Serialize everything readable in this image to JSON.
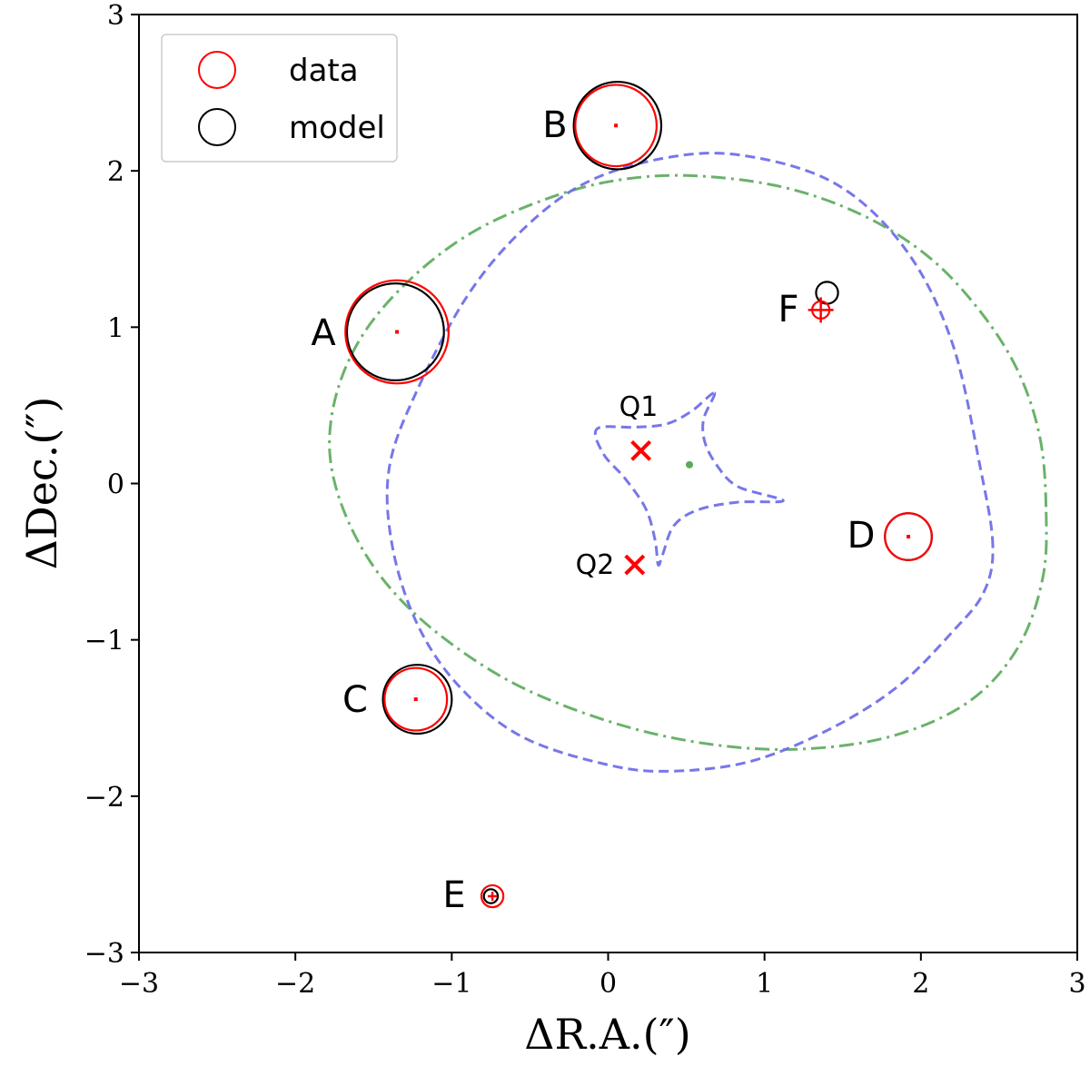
{
  "chart_data": {
    "type": "scatter",
    "title": "",
    "xlabel": "ΔR.A.(″)",
    "ylabel": "ΔDec.(″)",
    "xlim": [
      -3,
      3
    ],
    "ylim": [
      -3,
      3
    ],
    "xticks": [
      -3,
      -2,
      -1,
      0,
      1,
      2,
      3
    ],
    "yticks": [
      -3,
      -2,
      -1,
      0,
      1,
      2,
      3
    ],
    "xtick_labels": [
      "−3",
      "−2",
      "−1",
      "0",
      "1",
      "2",
      "3"
    ],
    "ytick_labels": [
      "−3",
      "−2",
      "−1",
      "0",
      "1",
      "2",
      "3"
    ],
    "grid": false,
    "legend": {
      "position": "top-left",
      "entries": [
        {
          "label": "data",
          "color": "#ff0000"
        },
        {
          "label": "model",
          "color": "#000000"
        }
      ]
    },
    "images": [
      {
        "name": "A",
        "data": {
          "x": -1.35,
          "y": 0.97,
          "r": 0.33
        },
        "model": {
          "x": -1.36,
          "y": 0.97,
          "r": 0.31
        }
      },
      {
        "name": "B",
        "data": {
          "x": 0.05,
          "y": 2.29,
          "r": 0.26
        },
        "model": {
          "x": 0.06,
          "y": 2.29,
          "r": 0.28
        }
      },
      {
        "name": "C",
        "data": {
          "x": -1.23,
          "y": -1.38,
          "r": 0.2
        },
        "model": {
          "x": -1.22,
          "y": -1.38,
          "r": 0.22
        }
      },
      {
        "name": "D",
        "data": {
          "x": 1.92,
          "y": -0.34,
          "r": 0.15
        },
        "model": {
          "x": 1.92,
          "y": -0.34,
          "r": 0.15
        }
      },
      {
        "name": "E",
        "data": {
          "x": -0.74,
          "y": -2.64,
          "r": 0.07
        },
        "model": {
          "x": -0.75,
          "y": -2.64,
          "r": 0.045
        }
      },
      {
        "name": "F",
        "data": {
          "x": 1.36,
          "y": 1.11,
          "r": 0.055
        },
        "model": {
          "x": 1.4,
          "y": 1.22,
          "r": 0.07
        }
      }
    ],
    "perturbers": [
      {
        "name": "Q1",
        "x": 0.21,
        "y": 0.21
      },
      {
        "name": "Q2",
        "x": 0.17,
        "y": -0.52
      }
    ],
    "source_center": {
      "x": 0.52,
      "y": 0.12
    },
    "critical_curve": {
      "style": "dash-dot",
      "color": "#5aaa5a",
      "points": [
        [
          2.8,
          -0.15
        ],
        [
          2.76,
          0.3
        ],
        [
          2.62,
          0.72
        ],
        [
          2.38,
          1.1
        ],
        [
          2.05,
          1.45
        ],
        [
          1.62,
          1.72
        ],
        [
          1.1,
          1.9
        ],
        [
          0.5,
          1.97
        ],
        [
          0.0,
          1.93
        ],
        [
          -0.45,
          1.8
        ],
        [
          -0.88,
          1.6
        ],
        [
          -1.25,
          1.32
        ],
        [
          -1.55,
          0.98
        ],
        [
          -1.73,
          0.6
        ],
        [
          -1.78,
          0.2
        ],
        [
          -1.68,
          -0.2
        ],
        [
          -1.45,
          -0.6
        ],
        [
          -1.1,
          -0.95
        ],
        [
          -0.6,
          -1.28
        ],
        [
          0.0,
          -1.52
        ],
        [
          0.6,
          -1.66
        ],
        [
          1.2,
          -1.7
        ],
        [
          1.8,
          -1.62
        ],
        [
          2.3,
          -1.4
        ],
        [
          2.62,
          -1.05
        ],
        [
          2.78,
          -0.6
        ]
      ]
    },
    "tangential_caustic": {
      "style": "dashed",
      "color": "#7070e8",
      "points": [
        [
          2.46,
          -0.4
        ],
        [
          2.38,
          0.1
        ],
        [
          2.2,
          0.9
        ],
        [
          1.9,
          1.5
        ],
        [
          1.45,
          1.92
        ],
        [
          0.85,
          2.1
        ],
        [
          0.35,
          2.08
        ],
        [
          -0.15,
          1.92
        ],
        [
          -0.55,
          1.62
        ],
        [
          -0.9,
          1.2
        ],
        [
          -1.22,
          0.6
        ],
        [
          -1.4,
          0.1
        ],
        [
          -1.38,
          -0.4
        ],
        [
          -1.22,
          -0.9
        ],
        [
          -0.95,
          -1.3
        ],
        [
          -0.55,
          -1.62
        ],
        [
          0.0,
          -1.8
        ],
        [
          0.4,
          -1.84
        ],
        [
          0.9,
          -1.78
        ],
        [
          1.4,
          -1.58
        ],
        [
          1.85,
          -1.3
        ],
        [
          2.2,
          -0.95
        ],
        [
          2.4,
          -0.7
        ]
      ]
    },
    "radial_caustic": {
      "style": "dashed",
      "color": "#7070e8",
      "points": [
        [
          0.68,
          0.58
        ],
        [
          0.61,
          0.41
        ],
        [
          0.62,
          0.26
        ],
        [
          0.7,
          0.11
        ],
        [
          0.83,
          -0.02
        ],
        [
          1.12,
          -0.11
        ],
        [
          0.82,
          -0.12
        ],
        [
          0.57,
          -0.17
        ],
        [
          0.42,
          -0.27
        ],
        [
          0.35,
          -0.45
        ],
        [
          0.32,
          -0.52
        ],
        [
          0.3,
          -0.36
        ],
        [
          0.24,
          -0.16
        ],
        [
          0.11,
          0.03
        ],
        [
          -0.03,
          0.19
        ],
        [
          -0.07,
          0.35
        ],
        [
          0.17,
          0.36
        ],
        [
          0.37,
          0.38
        ],
        [
          0.53,
          0.46
        ]
      ]
    },
    "colors": {
      "data": "#ff0000",
      "model": "#000000",
      "critical_curve": "#5aaa5a",
      "caustic": "#7070e8",
      "perturber": "#ff0000"
    }
  }
}
